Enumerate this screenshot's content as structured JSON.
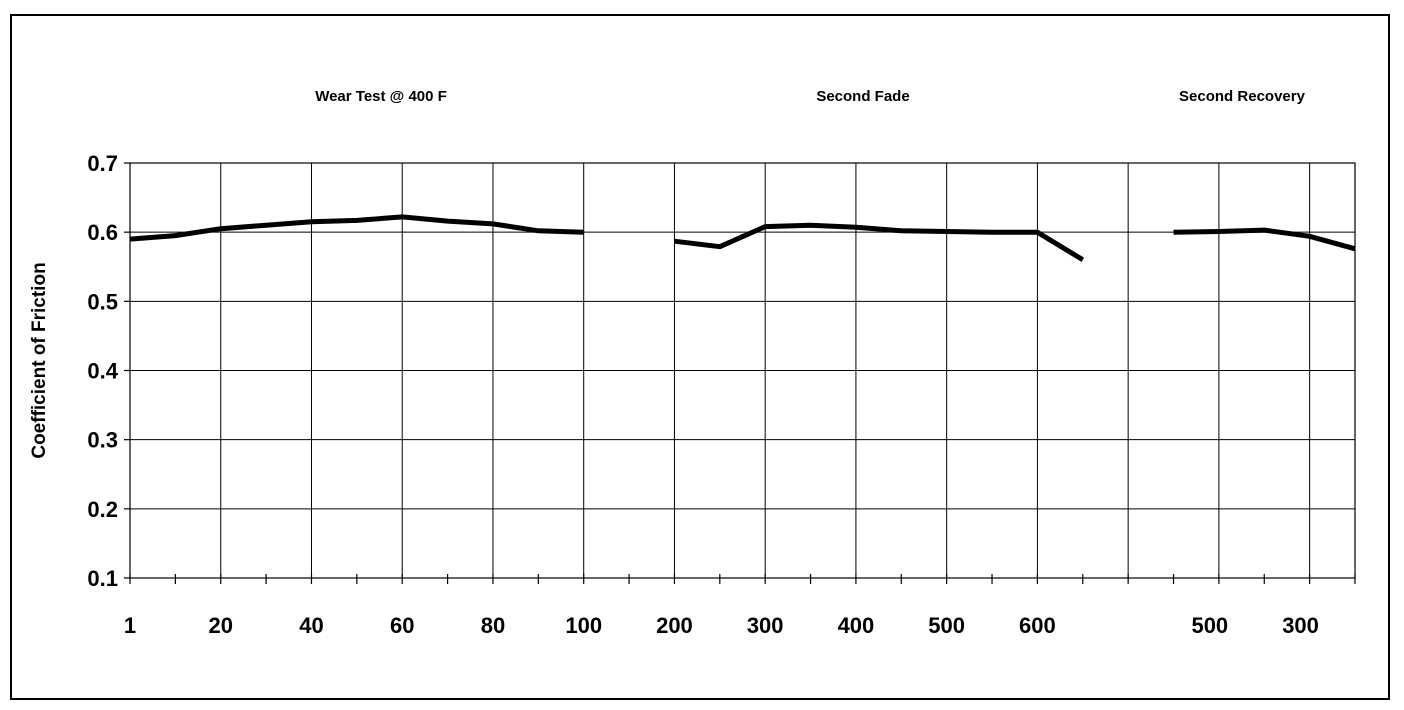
{
  "chart_data": {
    "type": "line",
    "sections": [
      "Wear Test @ 400 F",
      "Second Fade",
      "Second Recovery"
    ],
    "ylabel": "Coefficient of Friction",
    "xlabel": "",
    "ylim": [
      0.1,
      0.7
    ],
    "y_ticks": [
      "0.1",
      "0.2",
      "0.3",
      "0.4",
      "0.5",
      "0.6",
      "0.7"
    ],
    "x_tick_labels": [
      "1",
      "20",
      "40",
      "60",
      "80",
      "100",
      "200",
      "300",
      "400",
      "500",
      "600",
      "",
      "500",
      "300"
    ],
    "grid": true,
    "series": [
      {
        "segment": "Wear Test @ 400 F",
        "x": [
          "1",
          "10",
          "20",
          "30",
          "40",
          "50",
          "60",
          "70",
          "80",
          "90",
          "100"
        ],
        "y": [
          0.59,
          0.595,
          0.605,
          0.61,
          0.615,
          0.617,
          0.622,
          0.616,
          0.612,
          0.602,
          0.6
        ]
      },
      {
        "segment": "Second Fade",
        "x": [
          "200",
          "250",
          "300",
          "350",
          "400",
          "450",
          "500",
          "550",
          "600",
          "650"
        ],
        "y": [
          0.587,
          0.579,
          0.608,
          0.61,
          0.607,
          0.602,
          0.601,
          0.6,
          0.6,
          0.56
        ]
      },
      {
        "segment": "Second Recovery",
        "x": [
          "600",
          "500",
          "400",
          "300",
          "200"
        ],
        "y": [
          0.6,
          0.601,
          0.603,
          0.594,
          0.576
        ]
      }
    ]
  }
}
